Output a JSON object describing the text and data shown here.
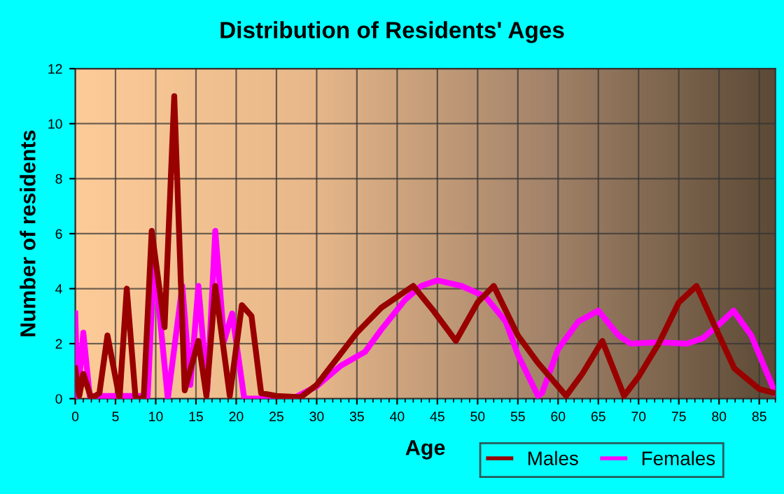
{
  "chart_data": {
    "type": "line",
    "title": "Distribution of Residents' Ages",
    "xlabel": "Age",
    "ylabel": "Number of residents",
    "xlim": [
      0,
      87
    ],
    "xticks": [
      0,
      5,
      10,
      15,
      20,
      25,
      30,
      35,
      40,
      45,
      50,
      55,
      60,
      65,
      70,
      75,
      80,
      85
    ],
    "ylim": [
      0,
      12
    ],
    "yticks": [
      0,
      2,
      4,
      6,
      8,
      10,
      12
    ],
    "grid": true,
    "legend": "bottom right",
    "series": [
      {
        "name": "Males",
        "color": "#990000",
        "x": [
          0,
          0.5,
          1,
          2,
          3,
          4,
          5.5,
          6.4,
          7.5,
          8.5,
          9.5,
          11.1,
          12.3,
          13.6,
          15.3,
          16.3,
          17.4,
          19.2,
          20.7,
          21.9,
          23.1,
          25,
          28,
          30,
          35,
          38,
          42,
          44.5,
          47.3,
          50,
          52,
          55,
          57.5,
          61,
          63,
          65.5,
          68.2,
          70,
          72.5,
          75,
          77.2,
          80,
          81.9,
          85,
          87
        ],
        "values": [
          1.1,
          0.1,
          0.9,
          0,
          0.2,
          2.3,
          0,
          4,
          0,
          0,
          6.1,
          2.6,
          11,
          0.3,
          2.1,
          0.1,
          4.1,
          0.1,
          3.4,
          3,
          0.2,
          0.1,
          0.05,
          0.5,
          2.4,
          3.3,
          4.1,
          3.2,
          2.1,
          3.5,
          4.1,
          2.3,
          1.3,
          0.1,
          0.9,
          2.1,
          0.1,
          0.8,
          2,
          3.5,
          4.1,
          2.3,
          1.1,
          0.35,
          0.2
        ]
      },
      {
        "name": "Females",
        "color": "#ff00ff",
        "x": [
          0,
          0.3,
          1,
          1.8,
          9,
          9.8,
          11.5,
          13.3,
          14.3,
          15.3,
          16.4,
          17.4,
          18.5,
          19.5,
          21,
          27,
          30,
          33,
          36,
          38,
          41,
          43,
          45,
          48,
          51,
          53.5,
          55,
          57.5,
          58,
          60,
          62.5,
          65,
          67.5,
          69,
          72.5,
          76,
          78,
          80,
          81.8,
          84,
          87
        ],
        "values": [
          3.1,
          0,
          2.4,
          0.1,
          0.1,
          5.1,
          0,
          4.1,
          0.5,
          4.1,
          0.3,
          6.1,
          2.1,
          3.1,
          0,
          0,
          0.45,
          1.2,
          1.7,
          2.5,
          3.6,
          4.1,
          4.3,
          4.1,
          3.7,
          2.8,
          1.6,
          0.1,
          0.2,
          1.8,
          2.8,
          3.2,
          2.3,
          2,
          2.05,
          2,
          2.2,
          2.7,
          3.2,
          2.3,
          0.2
        ]
      }
    ]
  }
}
